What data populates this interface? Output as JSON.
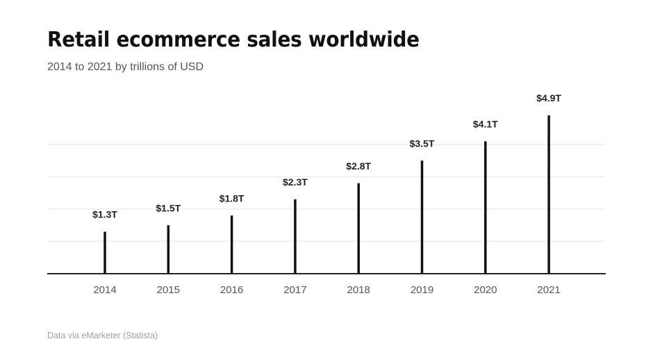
{
  "chart_data": {
    "type": "bar",
    "title": "Retail ecommerce sales worldwide",
    "subtitle": "2014 to 2021 by trillions of USD",
    "source": "Data via eMarketer (Statista)",
    "xlabel": "",
    "ylabel": "",
    "categories": [
      "2014",
      "2015",
      "2016",
      "2017",
      "2018",
      "2019",
      "2020",
      "2021"
    ],
    "values": [
      1.3,
      1.5,
      1.8,
      2.3,
      2.8,
      3.5,
      4.1,
      4.9
    ],
    "data_labels": [
      "$1.3T",
      "$1.5T",
      "$1.8T",
      "$2.3T",
      "$2.8T",
      "$3.5T",
      "$4.1T",
      "$4.9T"
    ],
    "ylim": [
      0,
      5
    ],
    "gridlines": [
      1,
      2,
      3,
      4
    ],
    "grid": true,
    "legend": "none",
    "colors": {
      "bar": "#111111",
      "grid": "#ececec",
      "axis": "#222222"
    }
  }
}
